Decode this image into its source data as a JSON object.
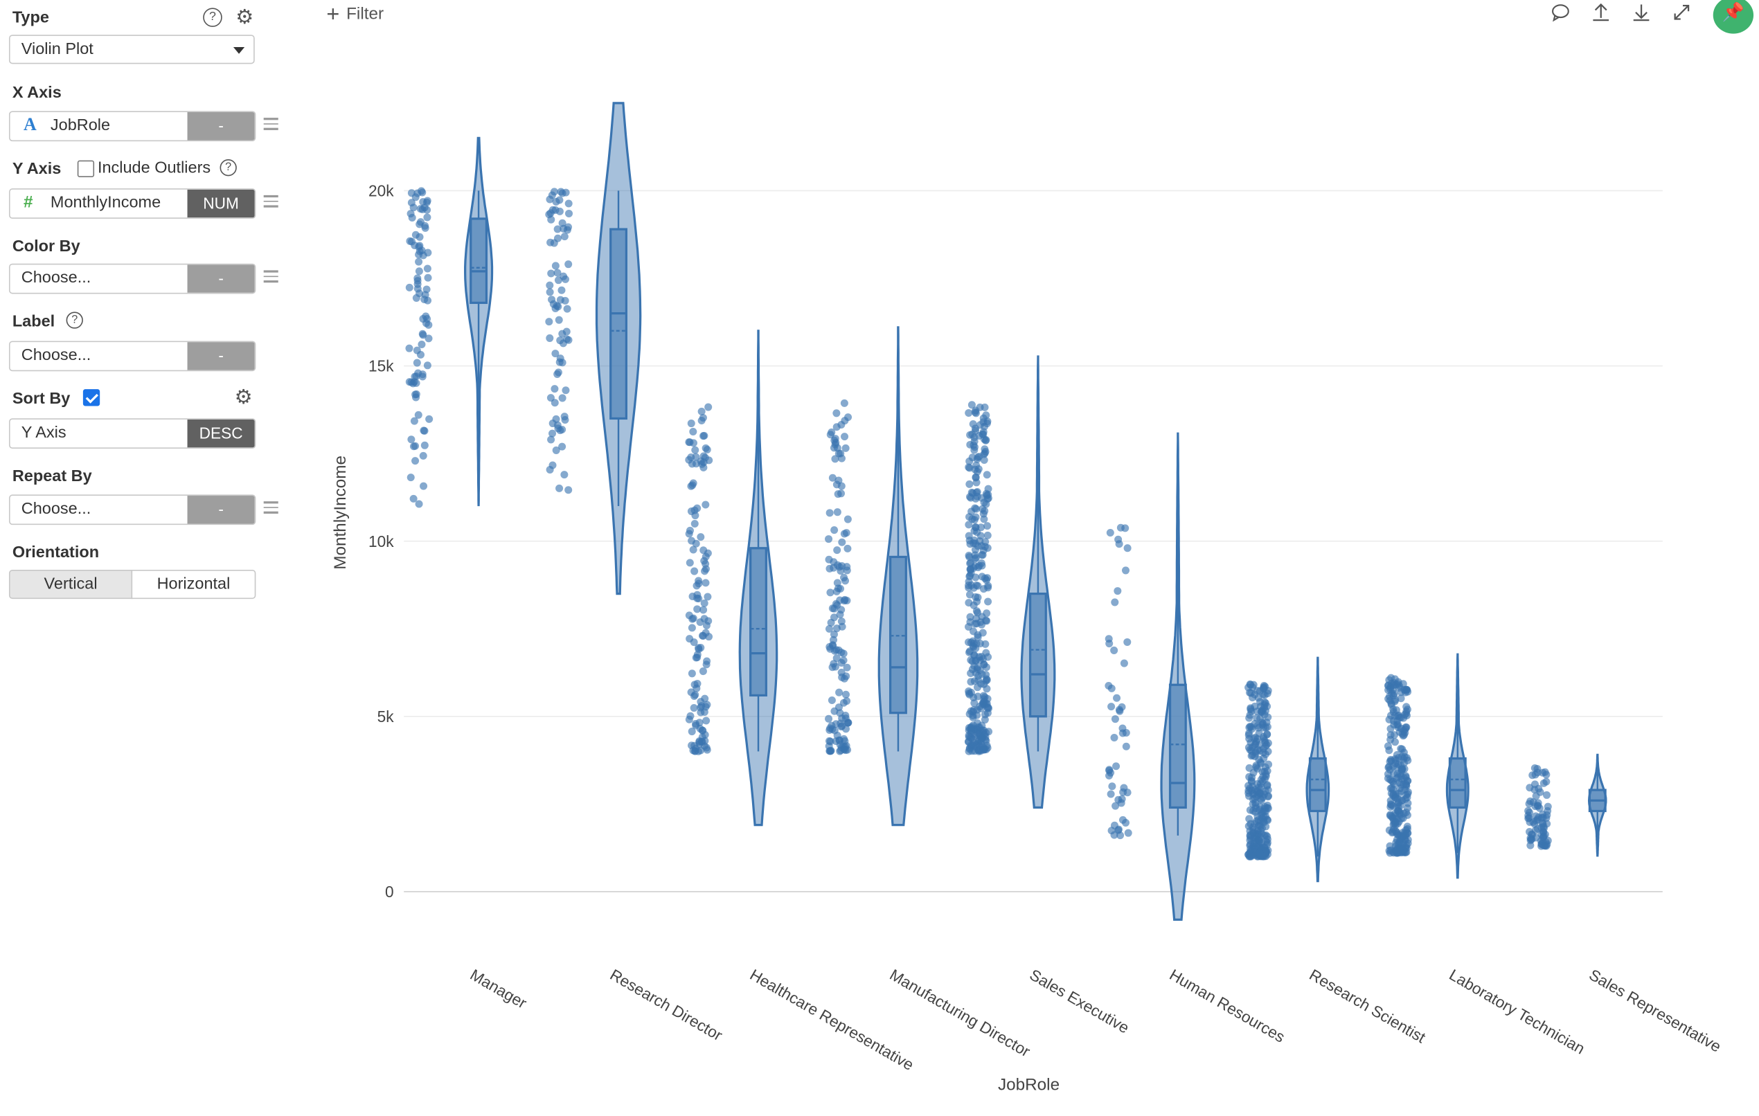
{
  "panel": {
    "type": {
      "title": "Type",
      "value": "Violin Plot"
    },
    "x_axis": {
      "title": "X Axis",
      "field": "JobRole",
      "tag": "-"
    },
    "y_axis": {
      "title": "Y Axis",
      "outliers_label": "Include Outliers",
      "field": "MonthlyIncome",
      "tag": "NUM"
    },
    "color_by": {
      "title": "Color By",
      "value": "Choose...",
      "tag": "-"
    },
    "label": {
      "title": "Label",
      "value": "Choose...",
      "tag": "-"
    },
    "sort_by": {
      "title": "Sort By",
      "checked": true,
      "value": "Y Axis",
      "tag": "DESC"
    },
    "repeat_by": {
      "title": "Repeat By",
      "value": "Choose...",
      "tag": "-"
    },
    "orientation": {
      "title": "Orientation",
      "options": [
        "Vertical",
        "Horizontal"
      ],
      "selected": "Vertical"
    }
  },
  "toolbar": {
    "filter_label": "Filter",
    "icons": [
      "comment-icon",
      "upload-icon",
      "download-icon",
      "expand-icon",
      "pin-icon"
    ]
  },
  "chart_data": {
    "type": "violin",
    "xlabel": "JobRole",
    "ylabel": "MonthlyIncome",
    "ylim": [
      0,
      20000
    ],
    "y_ticks": [
      "0",
      "5k",
      "10k",
      "15k",
      "20k"
    ],
    "y_tick_values": [
      0,
      5000,
      10000,
      15000,
      20000
    ],
    "color": "#3a74b0",
    "categories": [
      "Manager",
      "Research Director",
      "Healthcare Representative",
      "Manufacturing Director",
      "Sales Executive",
      "Human Resources",
      "Research Scientist",
      "Laboratory Technician",
      "Sales Representative"
    ],
    "violins": [
      {
        "category": "Manager",
        "data_min": 11000,
        "data_max": 20000,
        "q1": 16800,
        "median": 17700,
        "mean": 17800,
        "q3": 19200,
        "kde_min": 11000,
        "kde_max": 21500
      },
      {
        "category": "Research Director",
        "data_min": 11000,
        "data_max": 20000,
        "q1": 13500,
        "median": 16500,
        "mean": 16000,
        "q3": 18900,
        "kde_min": 8500,
        "kde_max": 22500
      },
      {
        "category": "Healthcare Representative",
        "data_min": 4000,
        "data_max": 14000,
        "q1": 5600,
        "median": 6800,
        "mean": 7500,
        "q3": 9800,
        "kde_min": 1900,
        "kde_max": 16000
      },
      {
        "category": "Manufacturing Director",
        "data_min": 4000,
        "data_max": 14000,
        "q1": 5100,
        "median": 6400,
        "mean": 7300,
        "q3": 9550,
        "kde_min": 1900,
        "kde_max": 16100
      },
      {
        "category": "Sales Executive",
        "data_min": 4000,
        "data_max": 13900,
        "q1": 5000,
        "median": 6200,
        "mean": 6900,
        "q3": 8500,
        "kde_min": 2400,
        "kde_max": 15300
      },
      {
        "category": "Human Resources",
        "data_min": 1600,
        "data_max": 10800,
        "q1": 2400,
        "median": 3100,
        "mean": 4200,
        "q3": 5900,
        "kde_min": -800,
        "kde_max": 13100
      },
      {
        "category": "Research Scientist",
        "data_min": 1000,
        "data_max": 6000,
        "q1": 2300,
        "median": 2900,
        "mean": 3200,
        "q3": 3800,
        "kde_min": 300,
        "kde_max": 6700
      },
      {
        "category": "Laboratory Technician",
        "data_min": 1100,
        "data_max": 6100,
        "q1": 2400,
        "median": 2900,
        "mean": 3200,
        "q3": 3800,
        "kde_min": 400,
        "kde_max": 6800
      },
      {
        "category": "Sales Representative",
        "data_min": 1300,
        "data_max": 3600,
        "q1": 2300,
        "median": 2600,
        "mean": 2600,
        "q3": 2900,
        "kde_min": 1000,
        "kde_max": 3900
      }
    ]
  }
}
